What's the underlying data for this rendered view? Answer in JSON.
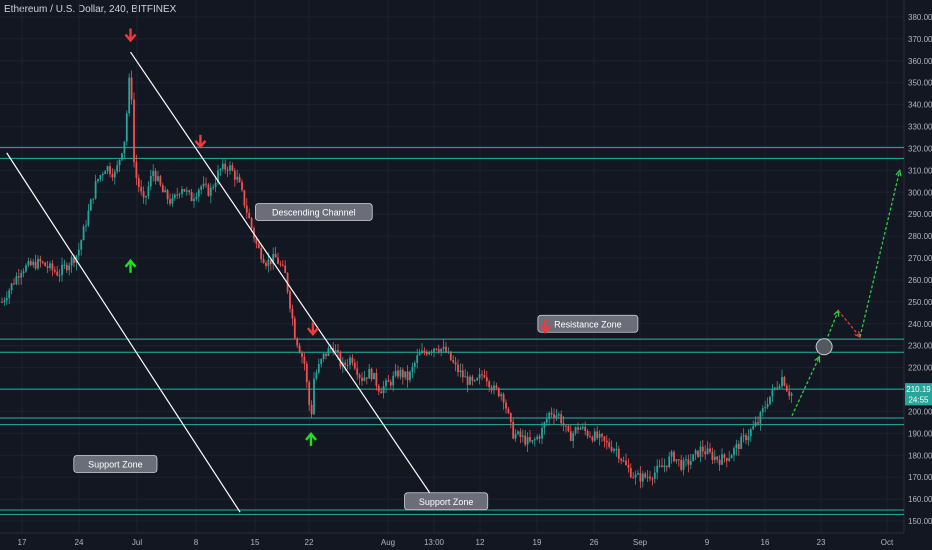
{
  "header": {
    "title": "Ethereum / U.S. Dollar, 240, BITFINEX"
  },
  "colors": {
    "background": "#131722",
    "axis_text": "#b2b5be",
    "grid": "#1e2230",
    "zone_line": "#1fb5a5",
    "up_candle": "#26a69a",
    "down_candle": "#ef5350",
    "arrow_up": "#22dd22",
    "arrow_down": "#ef3b3b",
    "channel": "#ffffff",
    "callout_bg": "#6b6e78",
    "price_tag": "#26a69a"
  },
  "chart_data": {
    "type": "candlestick",
    "y_axis": {
      "ylim": [
        145,
        385
      ],
      "ticks": [
        "380.00",
        "370.00",
        "360.00",
        "350.00",
        "340.00",
        "330.00",
        "320.00",
        "310.00",
        "300.00",
        "290.00",
        "280.00",
        "270.00",
        "260.00",
        "250.00",
        "240.00",
        "230.00",
        "220.00",
        "210.00",
        "200.00",
        "190.00",
        "180.00",
        "170.00",
        "160.00",
        "150.00"
      ]
    },
    "x_axis": {
      "ticks": [
        "17",
        "24",
        "Jul",
        "8",
        "15",
        "22",
        "Aug",
        "13:00",
        "12",
        "19",
        "26",
        "Sep",
        "9",
        "16",
        "23",
        "Oct"
      ]
    },
    "price_path": [
      [
        14,
        250
      ],
      [
        16,
        265
      ],
      [
        18,
        268
      ],
      [
        20,
        263
      ],
      [
        22,
        272
      ],
      [
        24,
        305
      ],
      [
        25,
        312
      ],
      [
        26,
        308
      ],
      [
        27,
        325
      ],
      [
        27.6,
        358
      ],
      [
        28,
        310
      ],
      [
        29,
        295
      ],
      [
        30,
        310
      ],
      [
        31,
        300
      ],
      [
        32,
        295
      ],
      [
        33,
        303
      ],
      [
        34,
        297
      ],
      [
        35,
        303
      ],
      [
        36,
        300
      ],
      [
        37,
        310
      ],
      [
        38,
        312
      ],
      [
        39,
        305
      ],
      [
        40,
        290
      ],
      [
        41,
        275
      ],
      [
        42,
        268
      ],
      [
        43,
        270
      ],
      [
        44,
        262
      ],
      [
        45,
        235
      ],
      [
        46,
        222
      ],
      [
        46.7,
        196
      ],
      [
        47,
        215
      ],
      [
        48,
        225
      ],
      [
        49,
        230
      ],
      [
        50,
        220
      ],
      [
        51,
        225
      ],
      [
        52,
        215
      ],
      [
        53,
        218
      ],
      [
        54,
        210
      ],
      [
        55,
        213
      ],
      [
        56,
        218
      ],
      [
        57,
        215
      ],
      [
        58,
        225
      ],
      [
        59,
        228
      ],
      [
        60,
        230
      ],
      [
        61,
        227
      ],
      [
        62,
        220
      ],
      [
        63,
        215
      ],
      [
        64,
        212
      ],
      [
        65,
        218
      ],
      [
        66,
        210
      ],
      [
        67,
        208
      ],
      [
        68,
        190
      ],
      [
        69,
        188
      ],
      [
        70,
        185
      ],
      [
        71,
        190
      ],
      [
        72,
        200
      ],
      [
        73,
        198
      ],
      [
        74,
        188
      ],
      [
        75,
        193
      ],
      [
        76,
        190
      ],
      [
        77,
        188
      ],
      [
        78,
        185
      ],
      [
        79,
        183
      ],
      [
        80,
        175
      ],
      [
        81,
        170
      ],
      [
        82,
        170
      ],
      [
        83,
        172
      ],
      [
        84,
        175
      ],
      [
        85,
        180
      ],
      [
        86,
        175
      ],
      [
        87,
        178
      ],
      [
        88,
        183
      ],
      [
        89,
        180
      ],
      [
        90,
        178
      ],
      [
        91,
        180
      ],
      [
        92,
        185
      ],
      [
        93,
        190
      ],
      [
        94,
        195
      ],
      [
        95,
        205
      ],
      [
        96,
        212
      ],
      [
        96.6,
        216
      ],
      [
        97.2,
        209
      ],
      [
        97.6,
        208
      ]
    ],
    "support_resistance_lines": [
      {
        "label": "",
        "value": 320.5
      },
      {
        "label": "",
        "value": 315.5
      },
      {
        "label": "Resistance Zone",
        "value": 233
      },
      {
        "label": "",
        "value": 227
      },
      {
        "label": "",
        "value": 210.19
      },
      {
        "label": "",
        "value": 197
      },
      {
        "label": "",
        "value": 194
      },
      {
        "label": "",
        "value": 155
      },
      {
        "label": "",
        "value": 153
      }
    ],
    "descending_channel": {
      "label": "Descending Channel",
      "upper": [
        [
          27.6,
          364
        ],
        [
          60.5,
          155
        ]
      ],
      "lower": [
        [
          14.5,
          318
        ],
        [
          39.2,
          154
        ]
      ]
    },
    "annotations": [
      {
        "label": "Descending Channel",
        "x": 47,
        "y": 291
      },
      {
        "label": "Resistance Zone",
        "x": 76,
        "y": 240
      },
      {
        "label": "Support Zone",
        "x": 26,
        "y": 176
      },
      {
        "label": "Support Zone",
        "x": 61,
        "y": 159
      }
    ],
    "arrows_down": [
      [
        27.6,
        372
      ],
      [
        35,
        323.5
      ],
      [
        46.9,
        238
      ],
      [
        71.5,
        239
      ]
    ],
    "arrows_up": [
      [
        27.6,
        266
      ],
      [
        46.7,
        187
      ]
    ],
    "projection": {
      "green_path_1": [
        [
          97.6,
          198
        ],
        [
          100.5,
          225
        ]
      ],
      "green_path_2": [
        [
          101,
          230
        ],
        [
          102.5,
          246
        ]
      ],
      "red_path": [
        [
          102.5,
          246
        ],
        [
          104.8,
          234
        ]
      ],
      "green_path_3": [
        [
          104.8,
          234
        ],
        [
          109,
          310
        ]
      ],
      "circle": [
        101,
        229.5
      ]
    },
    "price_tags": [
      {
        "label": "210.19",
        "value": 210.19
      },
      {
        "label": "24:55",
        "value": 205.5
      }
    ]
  }
}
